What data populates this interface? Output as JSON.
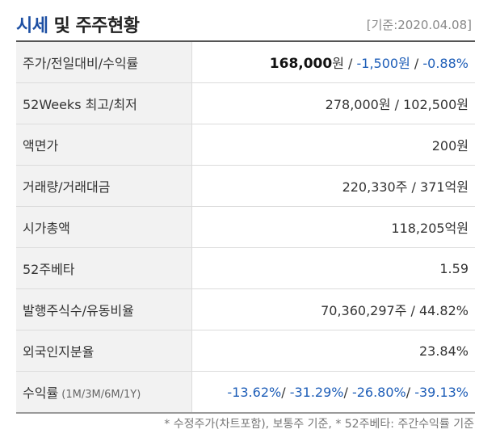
{
  "header": {
    "title_accent": "시세",
    "title_rest": " 및 주주현황",
    "date": "[기준:2020.04.08]"
  },
  "rows": {
    "price": {
      "label": "주가/전일대비/수익률",
      "price": "168,000",
      "unit": "원",
      "sep1": " / ",
      "change": "-1,500원",
      "sep2": " / ",
      "rate": "-0.88%"
    },
    "weeks52": {
      "label": "52Weeks 최고/최저",
      "value": "278,000원 / 102,500원"
    },
    "par": {
      "label": "액면가",
      "value": "200원"
    },
    "volume": {
      "label": "거래량/거래대금",
      "value": "220,330주 / 371억원"
    },
    "marketcap": {
      "label": "시가총액",
      "value": "118,205억원"
    },
    "beta": {
      "label": "52주베타",
      "value": "1.59"
    },
    "shares": {
      "label": "발행주식수/유동비율",
      "value": "70,360,297주 / 44.82%"
    },
    "foreign": {
      "label": "외국인지분율",
      "value": "23.84%"
    },
    "returns": {
      "label": "수익률",
      "label_small": " (1M/3M/6M/1Y)",
      "r1m": "-13.62%",
      "r3m": "-31.29%",
      "r6m": "-26.80%",
      "r1y": "-39.13%",
      "sep": "/ "
    }
  },
  "footnote": "* 수정주가(차트포함), 보통주 기준, * 52주베타: 주간수익률 기준",
  "colors": {
    "negative": "#1e5eb8",
    "title_accent": "#1d4fa3",
    "label_bg": "#f2f2f2"
  }
}
